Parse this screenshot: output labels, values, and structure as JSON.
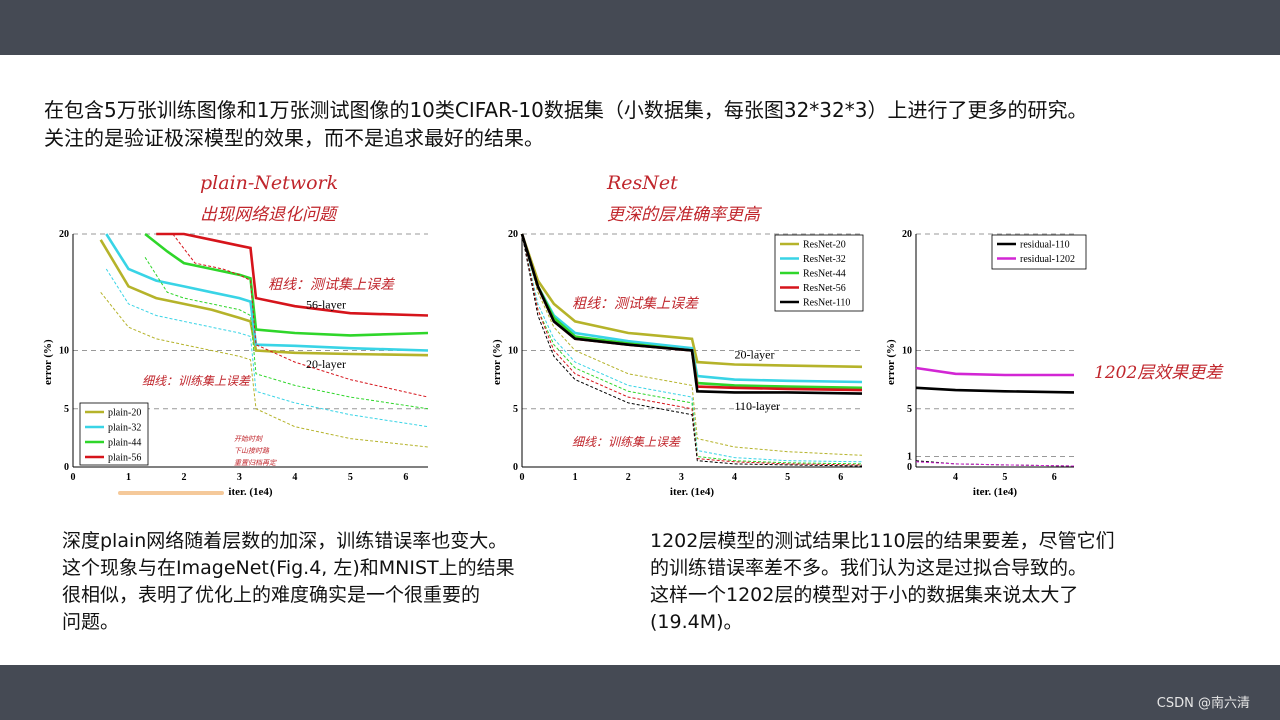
{
  "slide": {
    "intro": [
      "在包含5万张训练图像和1万张测试图像的10类CIFAR-10数据集（小数据集，每张图32*32*3）上进行了更多的研究。",
      "关注的是验证极深模型的效果，而不是追求最好的结果。"
    ],
    "caption_left": [
      "深度plain网络随着层数的加深，训练错误率也变大。",
      "这个现象与在ImageNet(Fig.4, 左)和MNIST上的结果",
      "很相似，表明了优化上的难度确实是一个很重要的",
      "问题。"
    ],
    "caption_right": [
      "1202层模型的测试结果比110层的结果要差，尽管它们",
      "的训练错误率差不多。我们认为这是过拟合导致的。",
      "这样一个1202层的模型对于小的数据集来说太大了",
      "(19.4M)。"
    ],
    "watermark": "CSDN @南六清"
  },
  "annotations": {
    "plain_title_1": "plain-Network",
    "plain_title_2": "出现网络退化问题",
    "resnet_title_1": "ResNet",
    "resnet_title_2": "更深的层准确率更高",
    "thick_note": "粗线：测试集上误差",
    "thin_note": "细线：训练集上误差",
    "small_note_1": "开始时刻",
    "small_note_2": "下山接时路",
    "small_note_3": "重置归档再定",
    "r1202_note": "1202层效果更差"
  },
  "colors": {
    "gold": "#b5b32a",
    "cyan": "#39d4e6",
    "green": "#2fd62a",
    "red": "#d6141b",
    "black": "#000000",
    "magenta": "#d226d4",
    "annotation": "#c0262c"
  },
  "chart_data": [
    {
      "type": "line",
      "xlabel": "iter. (1e4)",
      "ylabel": "error (%)",
      "xlim": [
        0,
        6.4
      ],
      "ylim": [
        0,
        20
      ],
      "xticks": [
        "0",
        "1",
        "2",
        "3",
        "4",
        "5",
        "6"
      ],
      "yticks": [
        "0",
        "5",
        "10",
        "20"
      ],
      "grid": "dashed at 5, 10, 20",
      "legend": "bottom-left",
      "labels": [
        "56-layer",
        "20-layer"
      ],
      "series": [
        {
          "name": "plain-20",
          "color": "gold",
          "test": [
            [
              0.5,
              19.5
            ],
            [
              1.0,
              15.5
            ],
            [
              1.5,
              14.5
            ],
            [
              2.0,
              14.0
            ],
            [
              2.5,
              13.5
            ],
            [
              3.0,
              12.8
            ],
            [
              3.2,
              12.5
            ],
            [
              3.3,
              10.0
            ],
            [
              4.0,
              9.8
            ],
            [
              5.0,
              9.7
            ],
            [
              6.4,
              9.6
            ]
          ],
          "train": [
            [
              0.5,
              15
            ],
            [
              1.0,
              12
            ],
            [
              1.5,
              11
            ],
            [
              2.0,
              10.5
            ],
            [
              2.5,
              10
            ],
            [
              3.0,
              9.5
            ],
            [
              3.2,
              9.2
            ],
            [
              3.3,
              5.0
            ],
            [
              4.0,
              3.5
            ],
            [
              5.0,
              2.5
            ],
            [
              6.4,
              1.8
            ]
          ]
        },
        {
          "name": "plain-32",
          "color": "cyan",
          "test": [
            [
              0.6,
              20
            ],
            [
              1.0,
              17
            ],
            [
              1.5,
              16
            ],
            [
              2.0,
              15.5
            ],
            [
              2.5,
              15.0
            ],
            [
              3.0,
              14.5
            ],
            [
              3.2,
              14.2
            ],
            [
              3.3,
              10.5
            ],
            [
              4.0,
              10.4
            ],
            [
              5.0,
              10.2
            ],
            [
              6.4,
              10.0
            ]
          ],
          "train": [
            [
              0.6,
              17
            ],
            [
              1.0,
              14
            ],
            [
              1.5,
              13
            ],
            [
              2.0,
              12.5
            ],
            [
              2.5,
              12
            ],
            [
              3.0,
              11.5
            ],
            [
              3.2,
              11.2
            ],
            [
              3.3,
              6.5
            ],
            [
              4.0,
              5.5
            ],
            [
              5.0,
              4.5
            ],
            [
              6.4,
              3.5
            ]
          ]
        },
        {
          "name": "plain-44",
          "color": "green",
          "test": [
            [
              1.3,
              20
            ],
            [
              1.7,
              18.5
            ],
            [
              2.0,
              17.5
            ],
            [
              2.5,
              17.0
            ],
            [
              3.0,
              16.5
            ],
            [
              3.2,
              16.2
            ],
            [
              3.3,
              11.8
            ],
            [
              4.0,
              11.5
            ],
            [
              5.0,
              11.3
            ],
            [
              6.4,
              11.5
            ]
          ],
          "train": [
            [
              1.3,
              18
            ],
            [
              1.7,
              15
            ],
            [
              2.0,
              14.5
            ],
            [
              2.5,
              14.0
            ],
            [
              3.0,
              13.5
            ],
            [
              3.2,
              13.0
            ],
            [
              3.3,
              8.0
            ],
            [
              4.0,
              7.0
            ],
            [
              5.0,
              6.0
            ],
            [
              6.4,
              5.0
            ]
          ]
        },
        {
          "name": "plain-56",
          "color": "red",
          "test": [
            [
              1.5,
              20
            ],
            [
              2.0,
              20
            ],
            [
              2.5,
              19.5
            ],
            [
              3.0,
              19.0
            ],
            [
              3.2,
              18.8
            ],
            [
              3.3,
              14.5
            ],
            [
              4.0,
              13.8
            ],
            [
              5.0,
              13.2
            ],
            [
              6.4,
              13.0
            ]
          ],
          "train": [
            [
              1.8,
              20
            ],
            [
              2.2,
              17.5
            ],
            [
              2.7,
              17.0
            ],
            [
              3.0,
              16.5
            ],
            [
              3.2,
              16.0
            ],
            [
              3.3,
              10.5
            ],
            [
              4.0,
              9.0
            ],
            [
              5.0,
              7.5
            ],
            [
              6.4,
              6.0
            ]
          ]
        }
      ]
    },
    {
      "type": "line",
      "xlabel": "iter. (1e4)",
      "ylabel": "error (%)",
      "xlim": [
        0,
        6.4
      ],
      "ylim": [
        0,
        20
      ],
      "xticks": [
        "0",
        "1",
        "2",
        "3",
        "4",
        "5",
        "6"
      ],
      "yticks": [
        "0",
        "5",
        "10",
        "20"
      ],
      "grid": "dashed at 5, 10, 20",
      "legend": "top-right",
      "labels": [
        "20-layer",
        "110-layer"
      ],
      "series": [
        {
          "name": "ResNet-20",
          "color": "gold",
          "test": [
            [
              0,
              20
            ],
            [
              0.3,
              16
            ],
            [
              0.6,
              14
            ],
            [
              1.0,
              12.5
            ],
            [
              2.0,
              11.5
            ],
            [
              3.2,
              11.0
            ],
            [
              3.3,
              9.0
            ],
            [
              4.0,
              8.8
            ],
            [
              5.0,
              8.7
            ],
            [
              6.4,
              8.6
            ]
          ],
          "train": [
            [
              0,
              20
            ],
            [
              0.3,
              15
            ],
            [
              0.6,
              12
            ],
            [
              1.0,
              10
            ],
            [
              2.0,
              8.0
            ],
            [
              3.2,
              7.0
            ],
            [
              3.3,
              2.5
            ],
            [
              4.0,
              1.8
            ],
            [
              5.0,
              1.4
            ],
            [
              6.4,
              1.1
            ]
          ]
        },
        {
          "name": "ResNet-32",
          "color": "cyan",
          "test": [
            [
              0,
              20
            ],
            [
              0.3,
              15.5
            ],
            [
              0.6,
              13
            ],
            [
              1.0,
              11.5
            ],
            [
              2.0,
              10.8
            ],
            [
              3.2,
              10.2
            ],
            [
              3.3,
              7.8
            ],
            [
              4.0,
              7.5
            ],
            [
              5.0,
              7.4
            ],
            [
              6.4,
              7.3
            ]
          ],
          "train": [
            [
              0,
              20
            ],
            [
              0.3,
              14
            ],
            [
              0.6,
              11
            ],
            [
              1.0,
              9
            ],
            [
              2.0,
              7.0
            ],
            [
              3.2,
              6.0
            ],
            [
              3.3,
              1.5
            ],
            [
              4.0,
              0.9
            ],
            [
              5.0,
              0.6
            ],
            [
              6.4,
              0.5
            ]
          ]
        },
        {
          "name": "ResNet-44",
          "color": "green",
          "test": [
            [
              0,
              20
            ],
            [
              0.3,
              15.5
            ],
            [
              0.6,
              12.8
            ],
            [
              1.0,
              11.2
            ],
            [
              2.0,
              10.6
            ],
            [
              3.2,
              10.0
            ],
            [
              3.3,
              7.2
            ],
            [
              4.0,
              7.0
            ],
            [
              5.0,
              6.9
            ],
            [
              6.4,
              6.8
            ]
          ],
          "train": [
            [
              0,
              20
            ],
            [
              0.3,
              13.5
            ],
            [
              0.6,
              10.5
            ],
            [
              1.0,
              8.5
            ],
            [
              2.0,
              6.5
            ],
            [
              3.2,
              5.5
            ],
            [
              3.3,
              1.0
            ],
            [
              4.0,
              0.6
            ],
            [
              5.0,
              0.4
            ],
            [
              6.4,
              0.3
            ]
          ]
        },
        {
          "name": "ResNet-56",
          "color": "red",
          "test": [
            [
              0,
              20
            ],
            [
              0.3,
              15.5
            ],
            [
              0.6,
              12.5
            ],
            [
              1.0,
              11.0
            ],
            [
              2.0,
              10.5
            ],
            [
              3.2,
              10.0
            ],
            [
              3.3,
              6.9
            ],
            [
              4.0,
              6.8
            ],
            [
              5.0,
              6.7
            ],
            [
              6.4,
              6.6
            ]
          ],
          "train": [
            [
              0,
              20
            ],
            [
              0.3,
              13.5
            ],
            [
              0.6,
              10
            ],
            [
              1.0,
              8.0
            ],
            [
              2.0,
              6.0
            ],
            [
              3.2,
              5.0
            ],
            [
              3.3,
              0.8
            ],
            [
              4.0,
              0.5
            ],
            [
              5.0,
              0.3
            ],
            [
              6.4,
              0.2
            ]
          ]
        },
        {
          "name": "ResNet-110",
          "color": "black",
          "test": [
            [
              0,
              20
            ],
            [
              0.3,
              15.5
            ],
            [
              0.6,
              12.5
            ],
            [
              1.0,
              11.0
            ],
            [
              2.0,
              10.5
            ],
            [
              3.2,
              10.0
            ],
            [
              3.3,
              6.5
            ],
            [
              4.0,
              6.4
            ],
            [
              5.0,
              6.4
            ],
            [
              6.4,
              6.3
            ]
          ],
          "train": [
            [
              0,
              20
            ],
            [
              0.3,
              13
            ],
            [
              0.6,
              9.5
            ],
            [
              1.0,
              7.5
            ],
            [
              2.0,
              5.5
            ],
            [
              3.2,
              4.5
            ],
            [
              3.3,
              0.6
            ],
            [
              4.0,
              0.3
            ],
            [
              5.0,
              0.2
            ],
            [
              6.4,
              0.1
            ]
          ]
        }
      ]
    },
    {
      "type": "line",
      "xlabel": "iter. (1e4)",
      "ylabel": "error (%)",
      "xlim": [
        3.2,
        6.4
      ],
      "ylim": [
        0,
        20
      ],
      "xticks": [
        "4",
        "5",
        "6"
      ],
      "yticks": [
        "0",
        "1",
        "5",
        "10",
        "20"
      ],
      "grid": "dashed at 1, 5, 10, 20",
      "legend": "top-right",
      "series": [
        {
          "name": "residual-110",
          "color": "black",
          "test": [
            [
              3.2,
              6.8
            ],
            [
              4.0,
              6.6
            ],
            [
              5.0,
              6.5
            ],
            [
              6.4,
              6.4
            ]
          ],
          "train": [
            [
              3.2,
              0.6
            ],
            [
              4.0,
              0.3
            ],
            [
              5.0,
              0.2
            ],
            [
              6.4,
              0.1
            ]
          ]
        },
        {
          "name": "residual-1202",
          "color": "magenta",
          "test": [
            [
              3.2,
              8.5
            ],
            [
              4.0,
              8.0
            ],
            [
              5.0,
              7.9
            ],
            [
              6.4,
              7.9
            ]
          ],
          "train": [
            [
              3.2,
              0.5
            ],
            [
              4.0,
              0.3
            ],
            [
              5.0,
              0.2
            ],
            [
              6.4,
              0.1
            ]
          ]
        }
      ]
    }
  ]
}
